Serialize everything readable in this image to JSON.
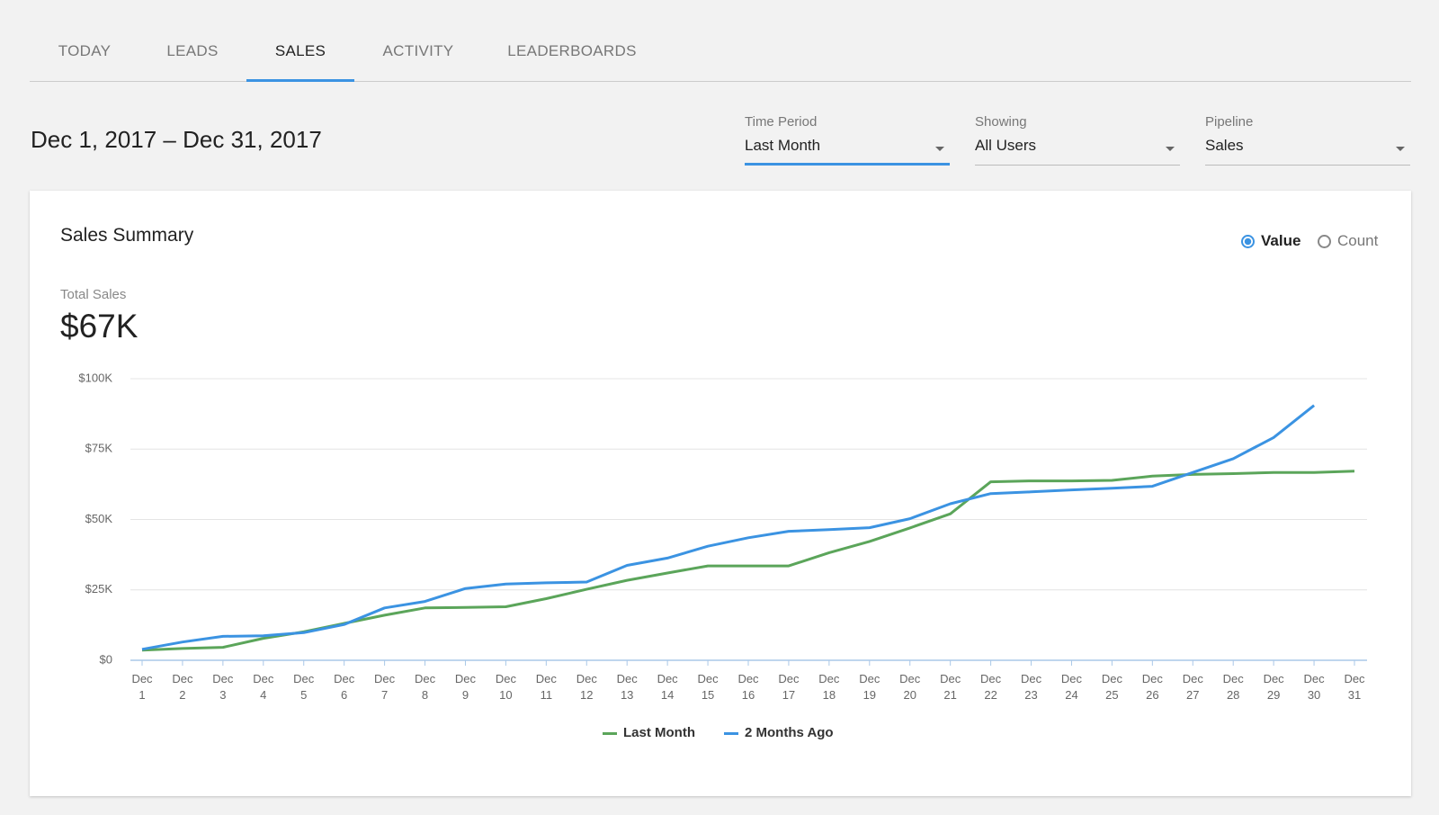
{
  "tabs": [
    "TODAY",
    "LEADS",
    "SALES",
    "ACTIVITY",
    "LEADERBOARDS"
  ],
  "active_tab": 2,
  "date_range": "Dec 1, 2017 – Dec 31, 2017",
  "filters": [
    {
      "label": "Time Period",
      "value": "Last Month",
      "active": true
    },
    {
      "label": "Showing",
      "value": "All Users",
      "active": false
    },
    {
      "label": "Pipeline",
      "value": "Sales",
      "active": false
    }
  ],
  "summary": {
    "title": "Sales Summary",
    "options": [
      "Value",
      "Count"
    ],
    "selected": 0,
    "total_label": "Total Sales",
    "total_value": "$67K"
  },
  "chart_data": {
    "type": "line",
    "categories": [
      "Dec 1",
      "Dec 2",
      "Dec 3",
      "Dec 4",
      "Dec 5",
      "Dec 6",
      "Dec 7",
      "Dec 8",
      "Dec 9",
      "Dec 10",
      "Dec 11",
      "Dec 12",
      "Dec 13",
      "Dec 14",
      "Dec 15",
      "Dec 16",
      "Dec 17",
      "Dec 18",
      "Dec 19",
      "Dec 20",
      "Dec 21",
      "Dec 22",
      "Dec 23",
      "Dec 24",
      "Dec 25",
      "Dec 26",
      "Dec 27",
      "Dec 28",
      "Dec 29",
      "Dec 30",
      "Dec 31"
    ],
    "series": [
      {
        "name": "Last Month",
        "color": "#5ba55a",
        "values": [
          3600,
          4200,
          4600,
          7800,
          10100,
          13100,
          16000,
          18600,
          18800,
          19000,
          21900,
          25200,
          28400,
          31000,
          33500,
          33500,
          33500,
          38200,
          42200,
          47000,
          52000,
          63400,
          63700,
          63700,
          63900,
          65400,
          66000,
          66300,
          66700,
          66700,
          67200
        ]
      },
      {
        "name": "2 Months Ago",
        "color": "#3b93e2",
        "values": [
          3900,
          6500,
          8500,
          8700,
          9800,
          12700,
          18600,
          20900,
          25500,
          27100,
          27500,
          27800,
          33700,
          36300,
          40500,
          43500,
          45800,
          46400,
          47100,
          50300,
          55600,
          59200,
          59800,
          60500,
          61100,
          61800,
          66700,
          71600,
          79100,
          90500,
          null
        ]
      }
    ],
    "ylim": [
      0,
      100000
    ],
    "yticks": [
      {
        "value": 0,
        "label": "$0"
      },
      {
        "value": 25000,
        "label": "$25K"
      },
      {
        "value": 50000,
        "label": "$50K"
      },
      {
        "value": 75000,
        "label": "$75K"
      },
      {
        "value": 100000,
        "label": "$100K"
      }
    ],
    "grid": true
  }
}
